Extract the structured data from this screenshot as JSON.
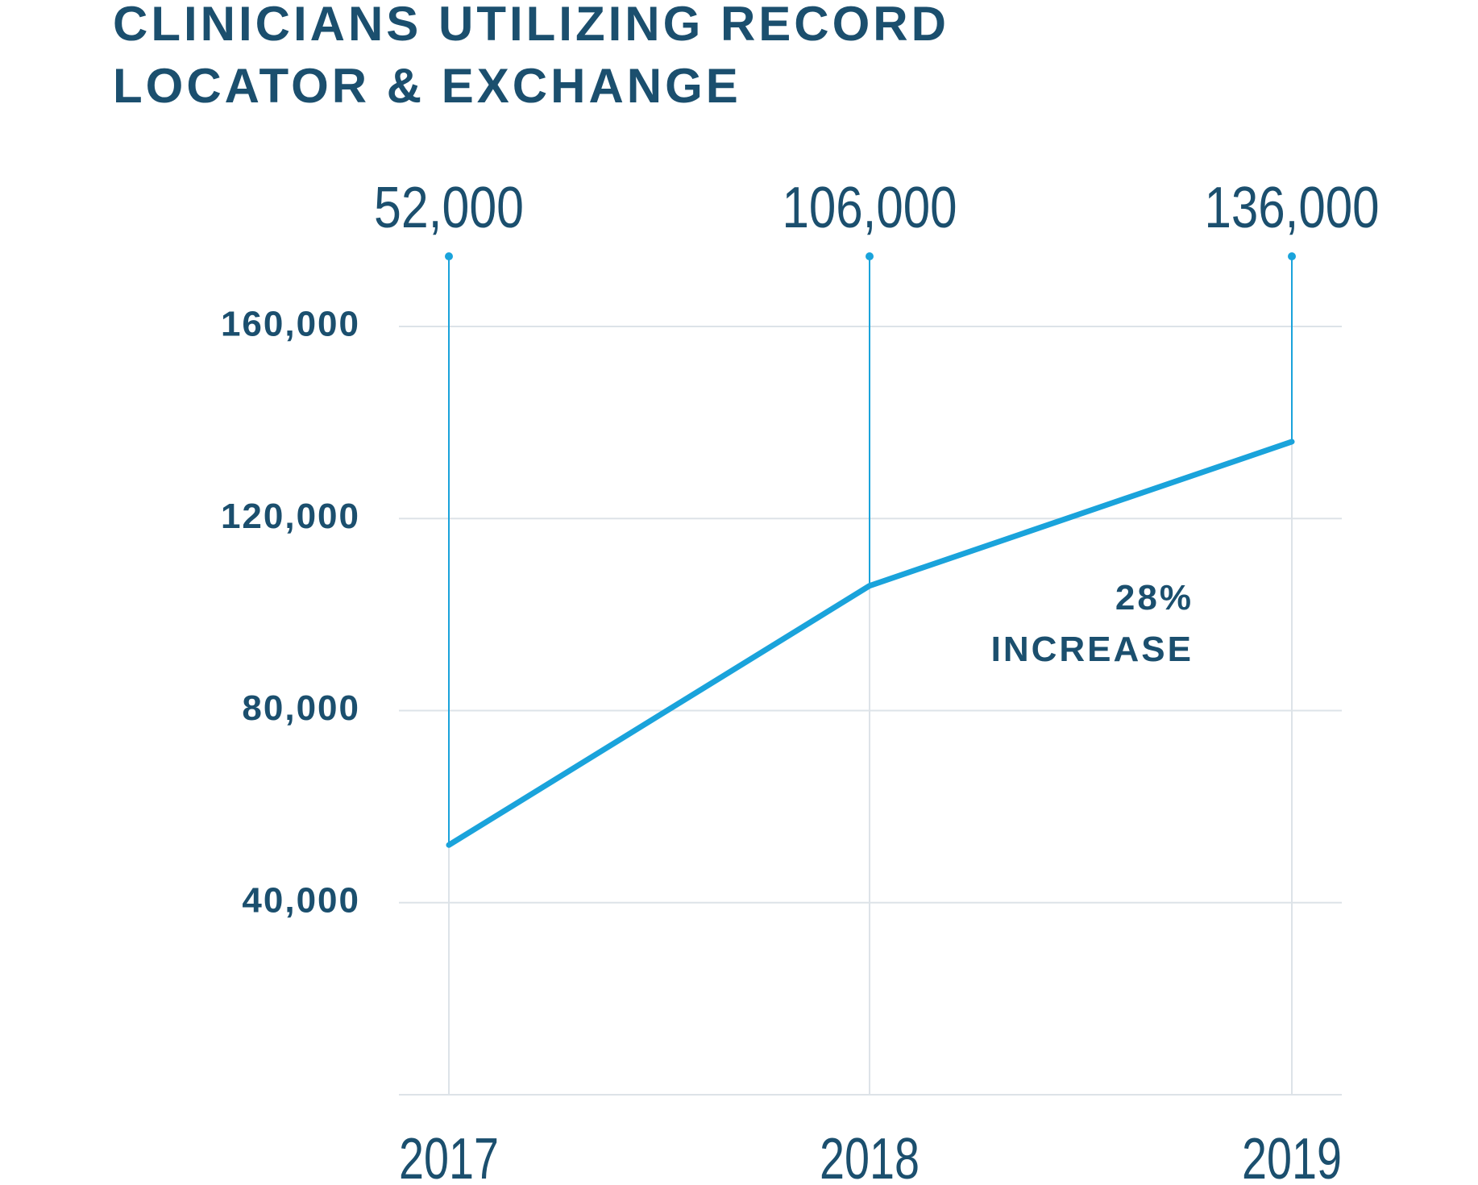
{
  "chart_data": {
    "type": "line",
    "title": [
      "CLINICIANS UTILIZING RECORD",
      "LOCATOR & EXCHANGE"
    ],
    "categories": [
      "2017",
      "2018",
      "2019"
    ],
    "values": [
      52000,
      106000,
      136000
    ],
    "value_labels": [
      "52,000",
      "106,000",
      "136,000"
    ],
    "color": "#1aa3db",
    "ylim": [
      0,
      160000
    ],
    "yticks": [
      {
        "value": 40000,
        "label": "40,000"
      },
      {
        "value": 80000,
        "label": "80,000"
      },
      {
        "value": 120000,
        "label": "120,000"
      },
      {
        "value": 160000,
        "label": "160,000"
      }
    ],
    "grid": true,
    "annotation": [
      "28%",
      "INCREASE"
    ]
  }
}
